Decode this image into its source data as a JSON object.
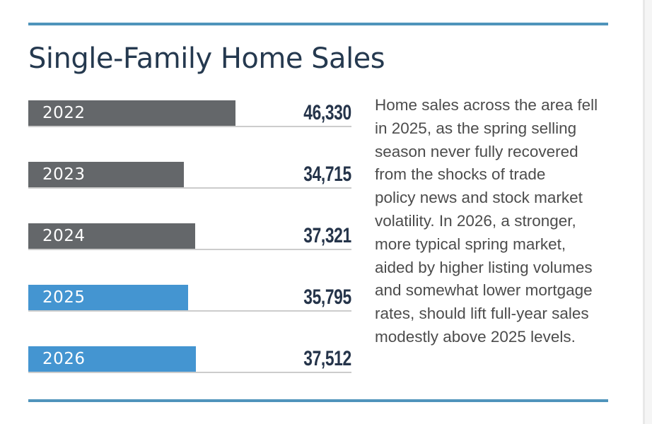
{
  "title": "Single-Family Home Sales",
  "paragraph_lines": [
    "Home sales across the area fell",
    "in 2025, as the spring selling",
    "season never fully recovered",
    "from the shocks of trade",
    "policy news and stock market",
    "volatility. In 2026, a stronger,",
    "more typical spring market,",
    "aided by higher listing volumes",
    "and somewhat lower mortgage",
    "rates, should lift full-year sales",
    "modestly above 2025 levels."
  ],
  "colors": {
    "accent_line": "#4f94bb",
    "bar_gray": "#64676a",
    "bar_blue": "#4495d1",
    "title_text": "#25394f",
    "value_text": "#25344a",
    "year_label_text": "#ffffff",
    "paragraph_text": "#4c4c4c",
    "row_underline": "#cccccc",
    "page_edge_band": "#f5f5f5",
    "page_edge_line": "#e8e8e8"
  },
  "chart_data": {
    "type": "bar",
    "orientation": "horizontal",
    "title": "Single-Family Home Sales",
    "categories": [
      "2022",
      "2023",
      "2024",
      "2025",
      "2026"
    ],
    "values": [
      46330,
      34715,
      37321,
      35795,
      37512
    ],
    "value_labels": [
      "46,330",
      "34,715",
      "37,321",
      "35,795",
      "37,512"
    ],
    "bar_colors": [
      "gray",
      "gray",
      "gray",
      "blue",
      "blue"
    ],
    "xlim": [
      0,
      46330
    ],
    "grid": false,
    "legend": false
  }
}
